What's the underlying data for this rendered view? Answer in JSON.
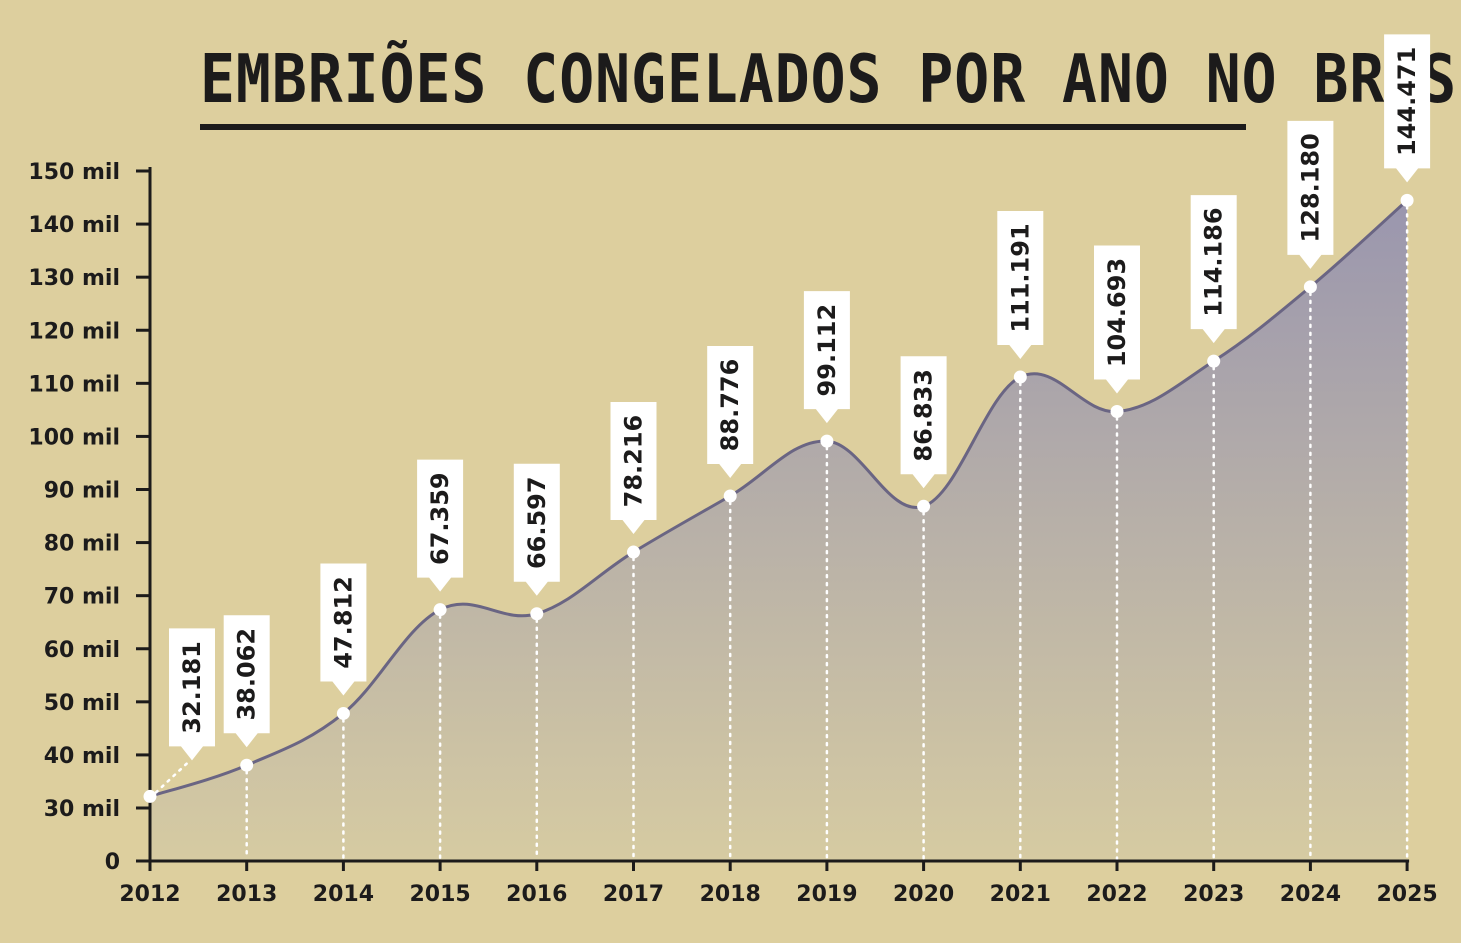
{
  "title": "EMBRIÕES CONGELADOS POR ANO NO BRASIL",
  "colors": {
    "background": "#ddcf9e",
    "line": "#6a6583",
    "area_top": "#9a96ae",
    "area_bottom": "#d6cba2",
    "axis": "#1c1b1b"
  },
  "chart_data": {
    "type": "area",
    "title": "EMBRIÕES CONGELADOS POR ANO NO BRASIL",
    "xlabel": "",
    "ylabel": "",
    "x": [
      "2012",
      "2013",
      "2014",
      "2015",
      "2016",
      "2017",
      "2018",
      "2019",
      "2020",
      "2021",
      "2022",
      "2023",
      "2024",
      "2025"
    ],
    "values": [
      32181,
      38062,
      47812,
      67359,
      66597,
      78216,
      88776,
      99112,
      86833,
      111191,
      104693,
      114186,
      128180,
      144471
    ],
    "value_labels": [
      "32.181",
      "38.062",
      "47.812",
      "67.359",
      "66.597",
      "78.216",
      "88.776",
      "99.112",
      "86.833",
      "111.191",
      "104.693",
      "114.186",
      "128.180",
      "144.471"
    ],
    "y_ticks": [
      0,
      30000,
      40000,
      50000,
      60000,
      70000,
      80000,
      90000,
      100000,
      110000,
      120000,
      130000,
      140000,
      150000
    ],
    "y_tick_labels": [
      "0",
      "30 mil",
      "40 mil",
      "50 mil",
      "60 mil",
      "70 mil",
      "80 mil",
      "90 mil",
      "100 mil",
      "110 mil",
      "120 mil",
      "130 mil",
      "140 mil",
      "150 mil"
    ],
    "ylim": [
      0,
      150000
    ],
    "y_axis_break": true,
    "grid": false,
    "legend": "none"
  }
}
